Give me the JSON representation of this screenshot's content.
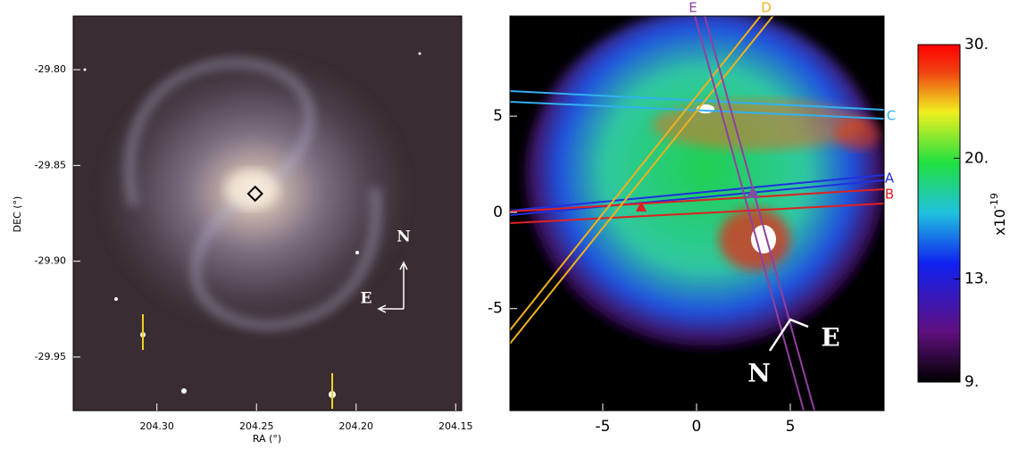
{
  "left_panel": {
    "xlabel": "RA (°)",
    "ylabel": "DEC (°)",
    "xlim": [
      204.342,
      204.147
    ],
    "ylim": [
      -29.978,
      -29.772
    ],
    "xticks": [
      {
        "value": 204.3,
        "label": "204.30"
      },
      204.25,
      {
        "value": 204.2,
        "label": "204.20"
      },
      204.15
    ],
    "yticks": [
      {
        "value": -29.8,
        "label": "-29.80"
      },
      -29.85,
      {
        "value": -29.9,
        "label": "-29.90"
      },
      -29.95
    ],
    "compass": {
      "north": "N",
      "east": "E"
    }
  },
  "right_panel": {
    "xlim": [
      -9.95,
      10
    ],
    "ylim": [
      -10.3,
      10.2
    ],
    "xticks": [
      -5,
      0,
      5
    ],
    "yticks": [
      -5,
      0,
      5
    ],
    "slits": [
      {
        "label": "A",
        "color": "#2030e0"
      },
      {
        "label": "B",
        "color": "#e02020"
      },
      {
        "label": "C",
        "color": "#30b0f0"
      },
      {
        "label": "D",
        "color": "#f0b020"
      },
      {
        "label": "E",
        "color": "#9040a0"
      }
    ],
    "compass": {
      "north": "N",
      "east": "E"
    }
  },
  "colorbar": {
    "scale": "log",
    "lim": [
      9,
      30
    ],
    "ticks": [
      {
        "value": 30,
        "label": "30."
      },
      {
        "value": 20,
        "label": "20."
      },
      {
        "value": 13,
        "label": "13."
      },
      {
        "value": 9,
        "label": "9."
      }
    ],
    "label": "x10",
    "exponent": "-19"
  }
}
